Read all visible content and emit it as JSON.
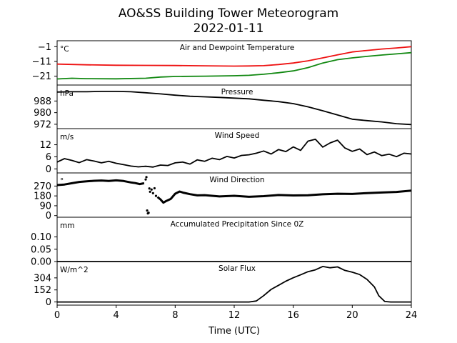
{
  "title": "AO&SS Building Tower Meteorogram",
  "subtitle": "2022-01-11",
  "chart_data": {
    "type": "line",
    "xlabel": "Time (UTC)",
    "x_range": [
      0,
      24
    ],
    "x_ticks": [
      "0",
      "4",
      "8",
      "12",
      "16",
      "20",
      "24"
    ],
    "x_tick_values": [
      0,
      4,
      8,
      12,
      16,
      20,
      24
    ],
    "colors": {
      "air": "#ee1111",
      "dew": "#118811",
      "line": "#000000"
    },
    "panels": [
      {
        "name": "Air and Dewpoint Temperature",
        "unit": "°C",
        "ylim": [
          -27,
          3
        ],
        "y_ticks": [
          "−1",
          "−11",
          "−21"
        ],
        "y_tick_values": [
          -1,
          -11,
          -21
        ],
        "series": [
          {
            "color_key": "air",
            "style": "line",
            "x": [
              0,
              2,
              4,
              6,
              8,
              10,
              12,
              13,
              14,
              15,
              16,
              17,
              18,
              19,
              20,
              21,
              22,
              23,
              24
            ],
            "y": [
              -12.8,
              -13.3,
              -13.6,
              -13.7,
              -13.8,
              -14.0,
              -14.2,
              -14.1,
              -13.9,
              -13.1,
              -12.1,
              -10.6,
              -8.6,
              -6.6,
              -4.6,
              -3.6,
              -2.6,
              -1.9,
              -1.0
            ]
          },
          {
            "color_key": "dew",
            "style": "line",
            "x": [
              0,
              1,
              2,
              4,
              6,
              7,
              8,
              10,
              12,
              13,
              14,
              15,
              16,
              17,
              18,
              19,
              20,
              21,
              22,
              23,
              24
            ],
            "y": [
              -22.9,
              -22.4,
              -22.7,
              -22.8,
              -22.4,
              -21.6,
              -21.2,
              -21.0,
              -20.7,
              -20.4,
              -19.7,
              -18.7,
              -17.4,
              -15.2,
              -12.1,
              -9.8,
              -8.6,
              -7.6,
              -6.7,
              -5.9,
              -5.1
            ]
          }
        ]
      },
      {
        "name": "Pressure",
        "unit": "hPa",
        "ylim": [
          969,
          999
        ],
        "y_ticks": [
          "988",
          "980",
          "972"
        ],
        "y_tick_values": [
          988,
          980,
          972
        ],
        "series": [
          {
            "color_key": "line",
            "style": "line",
            "x": [
              0,
              1,
              2,
              3,
              4,
              5,
              6,
              7,
              8,
              9,
              10,
              11,
              12,
              13,
              14,
              15,
              16,
              17,
              18,
              19,
              20,
              21,
              22,
              23,
              24
            ],
            "y": [
              994.2,
              994.4,
              994.4,
              994.6,
              994.6,
              994.4,
              993.7,
              992.9,
              992.0,
              991.3,
              990.9,
              990.5,
              990.0,
              989.5,
              988.5,
              987.6,
              986.2,
              984.0,
              981.3,
              978.4,
              975.5,
              974.5,
              973.6,
              972.4,
              971.8
            ]
          }
        ]
      },
      {
        "name": "Wind Speed",
        "unit": "m/s",
        "ylim": [
          -2,
          20
        ],
        "y_ticks": [
          "12",
          "6",
          "0"
        ],
        "y_tick_values": [
          12,
          6,
          0
        ],
        "series": [
          {
            "color_key": "line",
            "style": "line",
            "x": [
              0,
              0.5,
              1,
              1.5,
              2,
              2.5,
              3,
              3.5,
              4,
              4.5,
              5,
              5.5,
              6,
              6.5,
              7,
              7.5,
              8,
              8.5,
              9,
              9.5,
              10,
              10.5,
              11,
              11.5,
              12,
              12.5,
              13,
              13.5,
              14,
              14.5,
              15,
              15.5,
              16,
              16.5,
              17,
              17.5,
              18,
              18.5,
              19,
              19.5,
              20,
              20.5,
              21,
              21.5,
              22,
              22.5,
              23,
              23.5,
              24
            ],
            "y": [
              3.4,
              5.1,
              4.2,
              3.1,
              4.6,
              3.9,
              3.0,
              3.8,
              2.8,
              2.1,
              1.4,
              1.0,
              1.3,
              0.9,
              1.9,
              1.7,
              3.0,
              3.4,
              2.4,
              4.5,
              3.8,
              5.3,
              4.6,
              6.2,
              5.4,
              6.7,
              7.0,
              7.8,
              8.9,
              7.4,
              9.6,
              8.6,
              10.9,
              9.2,
              13.8,
              14.7,
              10.8,
              12.9,
              14.3,
              10.4,
              8.7,
              9.9,
              7.1,
              8.4,
              6.6,
              7.3,
              6.1,
              7.8,
              7.4
            ]
          }
        ]
      },
      {
        "name": "Wind Direction",
        "unit": "°",
        "ylim": [
          -15,
          390
        ],
        "y_ticks": [
          "270",
          "180",
          "90",
          "0"
        ],
        "y_tick_values": [
          270,
          180,
          90,
          0
        ],
        "series": [
          {
            "color_key": "line",
            "style": "line",
            "x": [
              0,
              0.5,
              1,
              1.5,
              2,
              2.5,
              3,
              3.5,
              4,
              4.5,
              5,
              5.3,
              5.6,
              5.9
            ],
            "y": [
              279,
              284,
              296,
              308,
              313,
              318,
              321,
              317,
              322,
              316,
              303,
              297,
              288,
              296
            ]
          },
          {
            "color_key": "line",
            "style": "dots",
            "x": [
              6.0,
              6.05,
              6.1,
              6.15,
              6.2,
              6.25,
              6.3,
              6.4,
              6.5,
              6.6,
              6.7
            ],
            "y": [
              330,
              352,
              46,
              20,
              26,
              248,
              218,
              238,
              205,
              250,
              180
            ]
          },
          {
            "color_key": "line",
            "style": "line",
            "x": [
              6.8,
              7.0,
              7.2,
              7.4,
              7.7,
              8.0,
              8.3,
              8.6,
              9.0,
              9.5,
              10,
              11,
              12,
              13,
              14,
              15,
              16,
              17,
              18,
              19,
              20,
              21,
              22,
              23,
              24
            ],
            "y": [
              170,
              148,
              118,
              134,
              152,
              200,
              220,
              208,
              196,
              185,
              187,
              175,
              181,
              172,
              178,
              188,
              184,
              186,
              195,
              200,
              198,
              206,
              211,
              216,
              228
            ]
          }
        ]
      },
      {
        "name": "Accumulated Precipitation Since 0Z",
        "unit": "mm",
        "ylim": [
          0,
          0.18
        ],
        "y_ticks": [
          "0.10",
          "0.05",
          "0.00"
        ],
        "y_tick_values": [
          0.1,
          0.05,
          0.0
        ],
        "series": [
          {
            "color_key": "line",
            "style": "line",
            "x": [
              0,
              24
            ],
            "y": [
              0,
              0
            ]
          }
        ]
      },
      {
        "name": "Solar Flux",
        "unit": "W/m^2",
        "ylim": [
          -40,
          510
        ],
        "y_ticks": [
          "304",
          "152",
          "0"
        ],
        "y_tick_values": [
          304,
          152,
          0
        ],
        "series": [
          {
            "color_key": "line",
            "style": "line",
            "x": [
              0,
              13.0,
              13.5,
              14.0,
              14.5,
              15.0,
              15.5,
              16.0,
              16.5,
              17.0,
              17.5,
              18.0,
              18.5,
              19.0,
              19.5,
              20.0,
              20.5,
              21.0,
              21.5,
              21.8,
              22.2,
              22.6,
              24
            ],
            "y": [
              0,
              0,
              12,
              80,
              158,
              210,
              262,
              305,
              342,
              382,
              405,
              448,
              432,
              442,
              398,
              376,
              346,
              285,
              190,
              78,
              6,
              0,
              0
            ]
          }
        ]
      }
    ]
  }
}
